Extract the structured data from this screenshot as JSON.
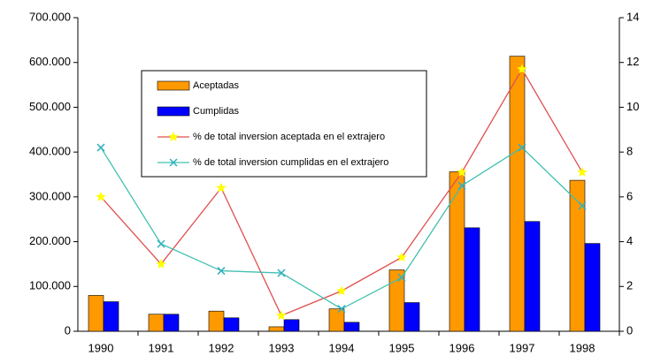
{
  "chart_data": {
    "type": "bar-line",
    "categories": [
      "1990",
      "1991",
      "1992",
      "1993",
      "1994",
      "1995",
      "1996",
      "1997",
      "1998"
    ],
    "series": [
      {
        "name": "Aceptadas",
        "type": "bar",
        "color": "#ff9900",
        "values": [
          80000,
          38000,
          45000,
          10000,
          50000,
          137000,
          356000,
          614000,
          337000
        ]
      },
      {
        "name": "Cumplidas",
        "type": "bar",
        "color": "#0000ff",
        "values": [
          66000,
          38000,
          30000,
          26000,
          20000,
          64000,
          231000,
          245000,
          196000
        ]
      },
      {
        "name": "% de total inversion aceptada en el extrajero",
        "type": "line",
        "axis": "y2",
        "color": "#e05050",
        "marker_color": "#ffff00",
        "values": [
          6.0,
          3.0,
          6.4,
          0.7,
          1.8,
          3.3,
          7.1,
          11.7,
          7.1
        ]
      },
      {
        "name": "% de total inversion cumplidas en el extrajero",
        "type": "line",
        "axis": "y2",
        "color": "#40c0b0",
        "marker_color": "#30b0c0",
        "values": [
          8.2,
          3.9,
          2.7,
          2.6,
          1.0,
          2.4,
          6.5,
          8.2,
          5.6
        ]
      }
    ],
    "ylim": [
      0,
      700000
    ],
    "yticks": [
      0,
      {
        "value": 100000,
        "label": "100.000"
      },
      {
        "value": 200000,
        "label": "200.000"
      },
      {
        "value": 300000,
        "label": "300.000"
      },
      {
        "value": 400000,
        "label": "400.000"
      },
      {
        "value": 500000,
        "label": "500.000"
      },
      {
        "value": 600000,
        "label": "600.000"
      },
      {
        "value": 700000,
        "label": "700.000"
      }
    ],
    "y2lim": [
      0,
      14
    ],
    "y2ticks": [
      0,
      2,
      4,
      6,
      8,
      10,
      12,
      14
    ],
    "grid": false
  }
}
